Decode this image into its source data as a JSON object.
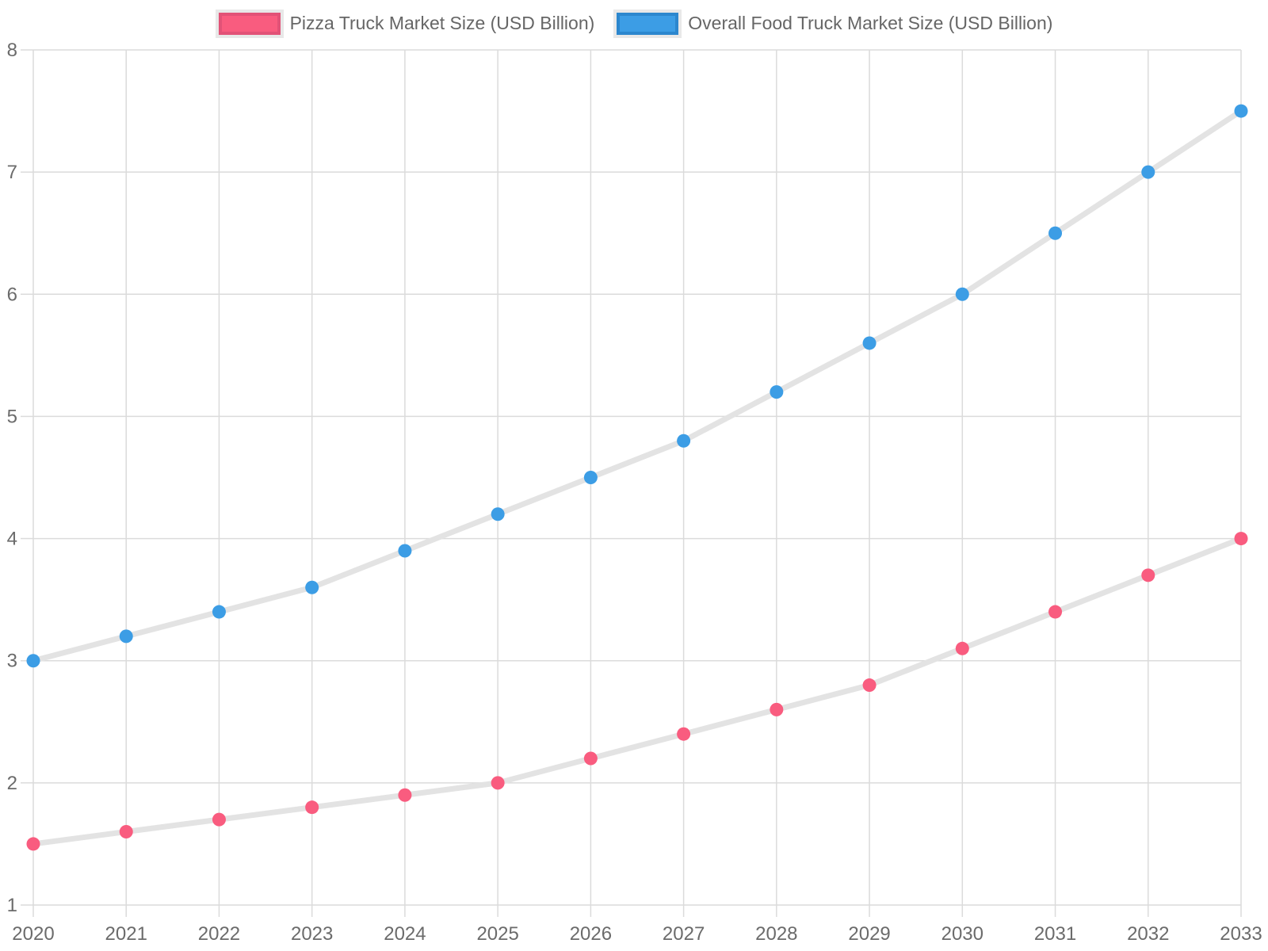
{
  "legend": {
    "items": [
      {
        "label": "Pizza Truck Market Size (USD Billion)",
        "fill": "#F95C7F",
        "border": "#E25277"
      },
      {
        "label": "Overall Food Truck Market Size (USD Billion)",
        "fill": "#3C9DE5",
        "border": "#2C87CE"
      }
    ]
  },
  "chart_data": {
    "type": "line",
    "x": [
      "2020",
      "2021",
      "2022",
      "2023",
      "2024",
      "2025",
      "2026",
      "2027",
      "2028",
      "2029",
      "2030",
      "2031",
      "2032",
      "2033"
    ],
    "series": [
      {
        "name": "Pizza Truck Market Size (USD Billion)",
        "values": [
          1.5,
          1.6,
          1.7,
          1.8,
          1.9,
          2.0,
          2.2,
          2.4,
          2.6,
          2.8,
          3.1,
          3.4,
          3.7,
          4.0
        ],
        "point_color": "#F95C7F"
      },
      {
        "name": "Overall Food Truck Market Size (USD Billion)",
        "values": [
          3.0,
          3.2,
          3.4,
          3.6,
          3.9,
          4.2,
          4.5,
          4.8,
          5.2,
          5.6,
          6.0,
          6.5,
          7.0,
          7.5
        ],
        "point_color": "#3C9DE5"
      }
    ],
    "title": "",
    "xlabel": "",
    "ylabel": "",
    "ylim": [
      1,
      8
    ],
    "yticks": [
      1,
      2,
      3,
      4,
      5,
      6,
      7,
      8
    ],
    "grid": true,
    "legend_position": "top",
    "line_color": "#E3E3E3",
    "grid_color": "#DBDBDB",
    "tick_label_color": "#6B6B6B"
  }
}
